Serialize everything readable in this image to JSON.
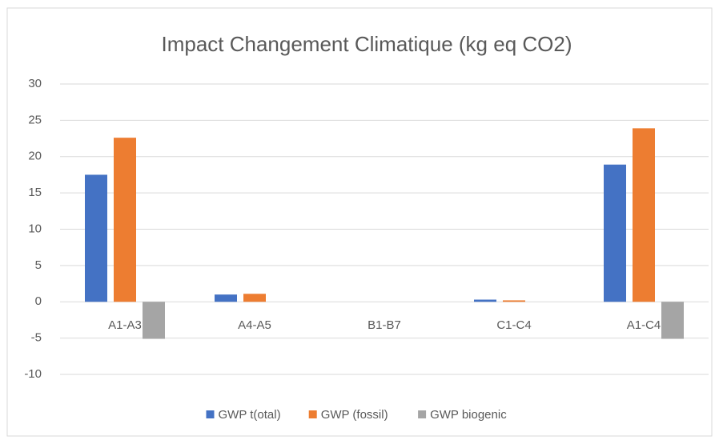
{
  "chart_data": {
    "type": "bar",
    "title": "Impact Changement Climatique (kg eq CO2)",
    "categories": [
      "A1-A3",
      "A4-A5",
      "B1-B7",
      "C1-C4",
      "A1-C4"
    ],
    "series": [
      {
        "name": "GWP t(otal)",
        "color": "#4472c4",
        "values": [
          17.5,
          1.0,
          0,
          0.3,
          18.9
        ]
      },
      {
        "name": "GWP (fossil)",
        "color": "#ed7d31",
        "values": [
          22.6,
          1.1,
          0,
          0.2,
          23.9
        ]
      },
      {
        "name": "GWP biogenic",
        "color": "#a5a5a5",
        "values": [
          -5.1,
          0,
          0,
          0,
          -5.1
        ]
      }
    ],
    "ylim": [
      -10,
      30
    ],
    "yticks": [
      -10,
      -5,
      0,
      5,
      10,
      15,
      20,
      25,
      30
    ],
    "grid": true,
    "legend": "bottom"
  }
}
